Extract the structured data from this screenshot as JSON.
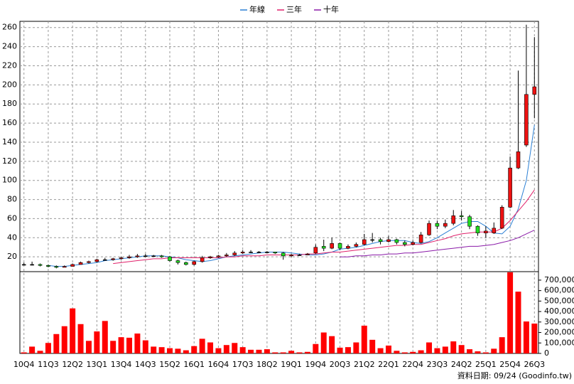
{
  "chart_data": {
    "type": "candlestick",
    "categories": [
      "10Q4",
      null,
      null,
      "11Q3",
      null,
      null,
      "12Q2",
      null,
      null,
      "13Q1",
      null,
      null,
      "13Q4",
      null,
      null,
      "14Q3",
      null,
      null,
      "15Q2",
      null,
      null,
      "16Q1",
      null,
      null,
      "16Q4",
      null,
      null,
      "17Q3",
      null,
      null,
      "18Q2",
      null,
      null,
      "19Q1",
      null,
      null,
      "19Q4",
      null,
      null,
      "20Q3",
      null,
      null,
      "21Q2",
      null,
      null,
      "22Q1",
      null,
      null,
      "22Q4",
      null,
      null,
      "23Q3",
      null,
      null,
      "24Q2",
      null,
      null,
      "25Q1",
      null,
      null,
      "25Q4",
      null,
      null,
      "26Q3"
    ],
    "open": [
      12,
      12,
      12,
      11,
      10,
      9,
      10,
      12,
      14,
      15,
      17,
      17,
      18,
      19,
      20,
      21,
      21,
      21,
      20,
      16,
      14,
      12,
      15,
      19,
      20,
      21,
      22,
      24,
      25,
      25,
      25,
      25,
      24,
      21,
      22,
      22,
      24,
      31,
      29,
      34,
      29,
      31,
      33,
      38,
      38,
      36,
      38,
      35,
      33,
      35,
      43,
      55,
      52,
      55,
      63,
      62,
      52,
      45,
      45,
      50,
      72,
      113,
      137,
      190
    ],
    "high": [
      14,
      15,
      13,
      12,
      11,
      11,
      13,
      15,
      16,
      18,
      19,
      19,
      20,
      22,
      23,
      23,
      22,
      22,
      21,
      17,
      15,
      16,
      21,
      21,
      22,
      24,
      26,
      27,
      27,
      26,
      26,
      25,
      25,
      23,
      23,
      24,
      33,
      38,
      40,
      35,
      33,
      35,
      44,
      45,
      40,
      42,
      39,
      37,
      37,
      46,
      58,
      58,
      59,
      69,
      68,
      64,
      53,
      52,
      56,
      74,
      125,
      215,
      263,
      250
    ],
    "low": [
      11,
      11,
      10,
      9,
      8,
      9,
      10,
      12,
      13,
      14,
      16,
      16,
      17,
      18,
      19,
      20,
      20,
      19,
      15,
      12,
      11,
      11,
      14,
      18,
      19,
      20,
      21,
      23,
      24,
      24,
      24,
      23,
      17,
      20,
      21,
      22,
      23,
      26,
      28,
      27,
      28,
      30,
      32,
      35,
      33,
      35,
      33,
      31,
      32,
      34,
      42,
      49,
      50,
      53,
      58,
      49,
      42,
      40,
      44,
      49,
      71,
      112,
      135,
      165
    ],
    "close": [
      12,
      12,
      11,
      10,
      9,
      10,
      12,
      14,
      15,
      17,
      17,
      18,
      19,
      20,
      21,
      21,
      21,
      20,
      16,
      14,
      12,
      15,
      19,
      20,
      21,
      22,
      24,
      25,
      25,
      25,
      25,
      24,
      21,
      22,
      22,
      23,
      30,
      29,
      34,
      29,
      31,
      33,
      38,
      38,
      36,
      38,
      35,
      33,
      35,
      43,
      55,
      52,
      55,
      63,
      62,
      52,
      45,
      47,
      50,
      72,
      113,
      130,
      190,
      198
    ],
    "up_color": "#ee1111",
    "down_color": "#22dd22",
    "series": [
      {
        "name": "年線",
        "color": "#2a7fd4",
        "values": [
          null,
          null,
          null,
          11,
          10,
          10,
          11,
          12,
          13,
          14,
          16,
          17,
          18,
          19,
          20,
          21,
          21,
          21,
          20,
          19,
          17,
          16,
          15,
          16,
          18,
          20,
          21,
          22,
          23,
          24,
          25,
          25,
          25,
          24,
          23,
          22,
          22,
          23,
          25,
          28,
          29,
          30,
          32,
          34,
          36,
          37,
          37,
          37,
          35,
          34,
          36,
          40,
          45,
          50,
          55,
          57,
          57,
          52,
          45,
          44,
          52,
          70,
          100,
          158
        ]
      },
      {
        "name": "三年",
        "color": "#e0206a",
        "values": [
          null,
          null,
          null,
          null,
          null,
          null,
          null,
          null,
          null,
          null,
          null,
          13,
          14,
          15,
          16,
          17,
          18,
          18,
          19,
          19,
          19,
          19,
          19,
          19,
          19,
          20,
          20,
          21,
          21,
          21,
          22,
          22,
          22,
          22,
          22,
          23,
          23,
          24,
          25,
          25,
          26,
          27,
          28,
          29,
          30,
          31,
          32,
          32,
          33,
          33,
          35,
          37,
          39,
          42,
          44,
          45,
          46,
          46,
          46,
          50,
          58,
          68,
          78,
          90
        ]
      },
      {
        "name": "十年",
        "color": "#8a1aa8",
        "values": [
          null,
          null,
          null,
          null,
          null,
          null,
          null,
          null,
          null,
          null,
          null,
          null,
          null,
          null,
          null,
          null,
          null,
          null,
          null,
          null,
          null,
          null,
          null,
          null,
          null,
          null,
          null,
          null,
          null,
          null,
          null,
          null,
          null,
          null,
          null,
          null,
          null,
          null,
          null,
          20,
          20,
          21,
          21,
          22,
          22,
          23,
          23,
          24,
          24,
          25,
          26,
          27,
          28,
          29,
          30,
          31,
          31,
          32,
          33,
          35,
          37,
          40,
          44,
          48
        ]
      }
    ],
    "volume": {
      "color": "#ff0000",
      "axis": "y2",
      "values": [
        10000,
        65000,
        25000,
        100000,
        185000,
        260000,
        430000,
        280000,
        120000,
        210000,
        310000,
        120000,
        155000,
        150000,
        190000,
        125000,
        65000,
        60000,
        50000,
        45000,
        30000,
        70000,
        140000,
        105000,
        50000,
        80000,
        100000,
        60000,
        35000,
        35000,
        40000,
        10000,
        10000,
        25000,
        10000,
        15000,
        90000,
        200000,
        165000,
        55000,
        60000,
        105000,
        265000,
        130000,
        50000,
        75000,
        25000,
        10000,
        15000,
        30000,
        105000,
        50000,
        65000,
        115000,
        80000,
        40000,
        20000,
        10000,
        45000,
        155000,
        775000,
        590000,
        305000,
        285000
      ]
    },
    "ylim": [
      4.5,
      266.5
    ],
    "yticks": [
      20,
      40,
      60,
      80,
      100,
      120,
      140,
      160,
      180,
      200,
      220,
      240,
      260
    ],
    "y2lim": [
      0,
      781000
    ],
    "y2ticks": [
      0,
      {
        "value": 100000,
        "label": "100,000"
      },
      {
        "value": 200000,
        "label": "200,000"
      },
      {
        "value": 300000,
        "label": "300,000"
      },
      {
        "value": 400000,
        "label": "400,000"
      },
      {
        "value": 500000,
        "label": "500,000"
      },
      {
        "value": 600000,
        "label": "600,000"
      },
      {
        "value": 700000,
        "label": "700,000"
      }
    ],
    "grid": true,
    "legend": "top",
    "footer": "資料日期: 09/24 (Goodinfo.tw)"
  }
}
